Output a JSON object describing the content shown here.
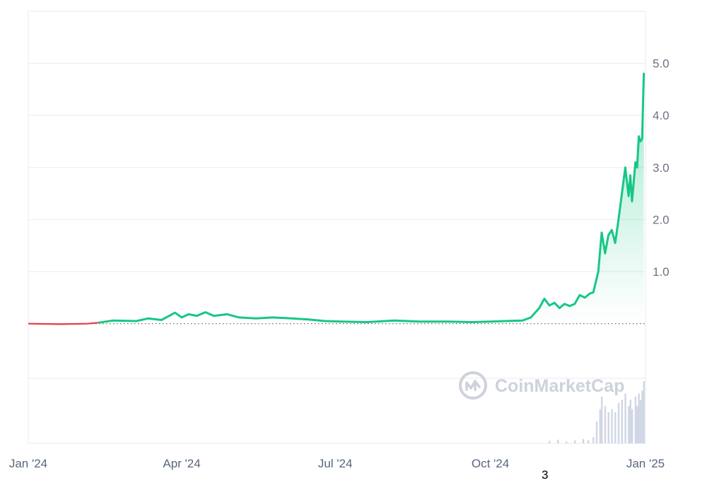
{
  "watermark": "CoinMarketCap",
  "footnote": "3",
  "colors": {
    "line_up": "#16c784",
    "line_down": "#ea3943",
    "grid": "#eff2f5",
    "area_top": "#16c784",
    "volume": "#cfd6e4",
    "baseline_dots": "#5a5a5a"
  },
  "chart_data": {
    "type": "line",
    "title": "",
    "xlabel": "",
    "ylabel": "",
    "xlim": [
      "2024-01-01",
      "2025-01-01"
    ],
    "ylim": [
      -2.3,
      6.0
    ],
    "yticks": [
      1.0,
      2.0,
      3.0,
      4.0,
      5.0
    ],
    "ytick_labels": [
      "1.0",
      "2.0",
      "3.0",
      "4.0",
      "5.0"
    ],
    "xticks": [
      "2024-01-01",
      "2024-04-01",
      "2024-07-01",
      "2024-10-01",
      "2025-01-01"
    ],
    "xtick_labels": [
      "Jan '24",
      "Apr '24",
      "Jul '24",
      "Oct '24",
      "Jan '25"
    ],
    "baseline": 0.0,
    "grid": true,
    "series": [
      {
        "points": [
          [
            "2024-01-01",
            0.0
          ],
          [
            "2024-01-20",
            -0.01
          ],
          [
            "2024-02-05",
            0.0
          ],
          [
            "2024-02-12",
            0.02
          ],
          [
            "2024-02-20",
            0.06
          ],
          [
            "2024-03-05",
            0.05
          ],
          [
            "2024-03-12",
            0.1
          ],
          [
            "2024-03-20",
            0.07
          ],
          [
            "2024-03-28",
            0.21
          ],
          [
            "2024-04-01",
            0.12
          ],
          [
            "2024-04-05",
            0.18
          ],
          [
            "2024-04-10",
            0.15
          ],
          [
            "2024-04-15",
            0.22
          ],
          [
            "2024-04-20",
            0.15
          ],
          [
            "2024-04-28",
            0.18
          ],
          [
            "2024-05-05",
            0.12
          ],
          [
            "2024-05-15",
            0.1
          ],
          [
            "2024-05-25",
            0.12
          ],
          [
            "2024-06-05",
            0.1
          ],
          [
            "2024-06-15",
            0.08
          ],
          [
            "2024-06-25",
            0.05
          ],
          [
            "2024-07-05",
            0.04
          ],
          [
            "2024-07-20",
            0.03
          ],
          [
            "2024-08-05",
            0.06
          ],
          [
            "2024-08-20",
            0.04
          ],
          [
            "2024-09-05",
            0.04
          ],
          [
            "2024-09-20",
            0.03
          ],
          [
            "2024-10-01",
            0.04
          ],
          [
            "2024-10-10",
            0.05
          ],
          [
            "2024-10-20",
            0.06
          ],
          [
            "2024-10-25",
            0.12
          ],
          [
            "2024-10-30",
            0.3
          ],
          [
            "2024-11-02",
            0.48
          ],
          [
            "2024-11-05",
            0.35
          ],
          [
            "2024-11-08",
            0.4
          ],
          [
            "2024-11-11",
            0.3
          ],
          [
            "2024-11-14",
            0.38
          ],
          [
            "2024-11-17",
            0.34
          ],
          [
            "2024-11-20",
            0.38
          ],
          [
            "2024-11-23",
            0.55
          ],
          [
            "2024-11-26",
            0.5
          ],
          [
            "2024-11-29",
            0.58
          ],
          [
            "2024-12-01",
            0.6
          ],
          [
            "2024-12-04",
            1.0
          ],
          [
            "2024-12-06",
            1.75
          ],
          [
            "2024-12-08",
            1.35
          ],
          [
            "2024-12-10",
            1.7
          ],
          [
            "2024-12-12",
            1.8
          ],
          [
            "2024-12-14",
            1.55
          ],
          [
            "2024-12-16",
            2.0
          ],
          [
            "2024-12-18",
            2.5
          ],
          [
            "2024-12-20",
            3.0
          ],
          [
            "2024-12-22",
            2.45
          ],
          [
            "2024-12-23",
            2.85
          ],
          [
            "2024-12-24",
            2.35
          ],
          [
            "2024-12-26",
            3.1
          ],
          [
            "2024-12-27",
            3.0
          ],
          [
            "2024-12-28",
            3.6
          ],
          [
            "2024-12-29",
            3.5
          ],
          [
            "2024-12-30",
            3.55
          ],
          [
            "2024-12-31",
            4.8
          ]
        ]
      }
    ],
    "volume": [
      [
        "2024-11-05",
        0.04
      ],
      [
        "2024-11-10",
        0.06
      ],
      [
        "2024-11-15",
        0.03
      ],
      [
        "2024-11-20",
        0.05
      ],
      [
        "2024-11-25",
        0.07
      ],
      [
        "2024-11-28",
        0.05
      ],
      [
        "2024-12-01",
        0.1
      ],
      [
        "2024-12-03",
        0.35
      ],
      [
        "2024-12-05",
        0.55
      ],
      [
        "2024-12-06",
        0.75
      ],
      [
        "2024-12-08",
        0.6
      ],
      [
        "2024-12-10",
        0.5
      ],
      [
        "2024-12-12",
        0.55
      ],
      [
        "2024-12-14",
        0.5
      ],
      [
        "2024-12-16",
        0.65
      ],
      [
        "2024-12-18",
        0.7
      ],
      [
        "2024-12-20",
        0.8
      ],
      [
        "2024-12-22",
        0.6
      ],
      [
        "2024-12-23",
        0.7
      ],
      [
        "2024-12-24",
        0.55
      ],
      [
        "2024-12-26",
        0.75
      ],
      [
        "2024-12-27",
        0.6
      ],
      [
        "2024-12-28",
        0.8
      ],
      [
        "2024-12-29",
        0.7
      ],
      [
        "2024-12-30",
        0.85
      ],
      [
        "2024-12-31",
        1.0
      ]
    ]
  }
}
